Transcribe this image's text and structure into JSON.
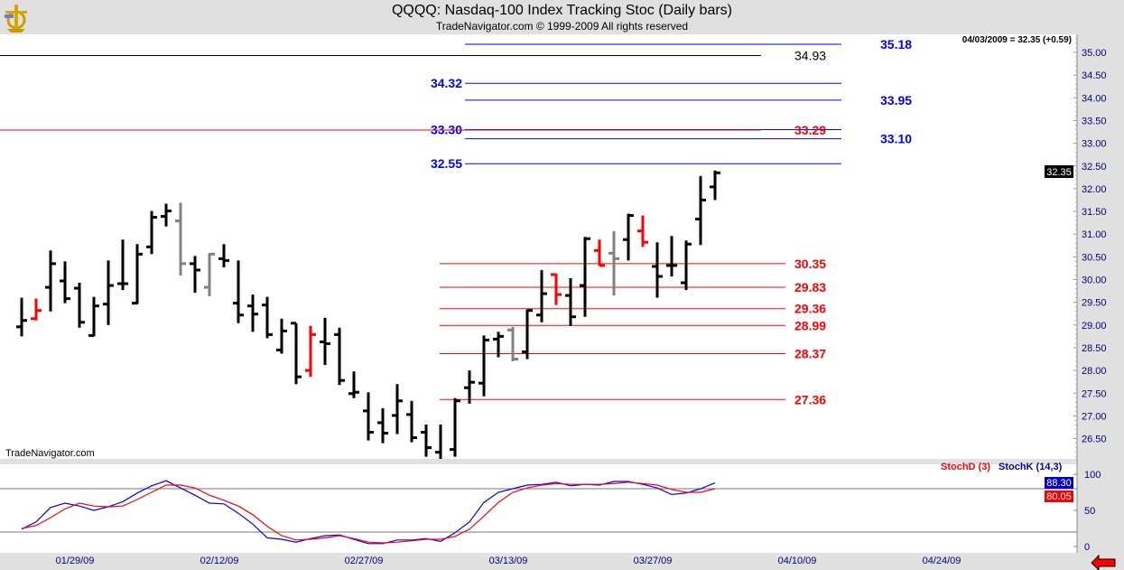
{
  "header": {
    "title": "QQQQ:  Nasdaq-100 Index Tracking Stoc  (Daily bars)",
    "subtitle": "TradeNavigator.com © 1999-2009 All rights reserved",
    "watermark": "TradeNavigator.com",
    "last_quote": "04/03/2009 = 32.35 (+0.59)"
  },
  "chart_data": [
    {
      "type": "ohlc",
      "title": "QQQQ:  Nasdaq-100 Index Tracking Stoc  (Daily bars)",
      "ylim": [
        26.1,
        35.4
      ],
      "y_ticks": [
        "35.00",
        "34.50",
        "34.00",
        "33.50",
        "33.00",
        "32.50",
        "32.00",
        "31.50",
        "31.00",
        "30.50",
        "30.00",
        "29.50",
        "29.00",
        "28.50",
        "28.00",
        "27.50",
        "27.00",
        "26.50"
      ],
      "x_ticks": [
        "01/29/09",
        "02/12/09",
        "02/27/09",
        "03/13/09",
        "03/27/09",
        "04/10/09",
        "04/24/09"
      ],
      "x_tick_dates_index": [
        3,
        13,
        23,
        33,
        43,
        53,
        63
      ],
      "last_price_label": "32.35",
      "bar_colors": {
        "normal": "#000000",
        "red": "#ff0000",
        "gray": "#808080"
      },
      "bars": [
        {
          "d": "01/26/09",
          "o": 28.96,
          "h": 29.6,
          "l": 28.75,
          "c": 29.1,
          "col": "normal"
        },
        {
          "d": "01/27/09",
          "o": 29.14,
          "h": 29.58,
          "l": 29.1,
          "c": 29.32,
          "col": "red"
        },
        {
          "d": "01/28/09",
          "o": 29.83,
          "h": 30.64,
          "l": 29.3,
          "c": 30.35,
          "col": "normal"
        },
        {
          "d": "01/29/09",
          "o": 29.97,
          "h": 30.4,
          "l": 29.48,
          "c": 29.58,
          "col": "normal"
        },
        {
          "d": "01/30/09",
          "o": 29.81,
          "h": 29.93,
          "l": 28.94,
          "c": 29.06,
          "col": "normal"
        },
        {
          "d": "02/02/09",
          "o": 28.77,
          "h": 29.62,
          "l": 28.75,
          "c": 29.42,
          "col": "normal"
        },
        {
          "d": "02/03/09",
          "o": 29.46,
          "h": 30.42,
          "l": 29.0,
          "c": 29.87,
          "col": "normal"
        },
        {
          "d": "02/04/09",
          "o": 29.91,
          "h": 30.88,
          "l": 29.77,
          "c": 29.91,
          "col": "normal"
        },
        {
          "d": "02/05/09",
          "o": 29.48,
          "h": 30.78,
          "l": 29.46,
          "c": 30.56,
          "col": "normal"
        },
        {
          "d": "02/06/09",
          "o": 30.72,
          "h": 31.51,
          "l": 30.56,
          "c": 31.37,
          "col": "normal"
        },
        {
          "d": "02/09/09",
          "o": 31.39,
          "h": 31.67,
          "l": 31.17,
          "c": 31.51,
          "col": "normal"
        },
        {
          "d": "02/10/09",
          "o": 31.29,
          "h": 31.69,
          "l": 30.09,
          "c": 30.35,
          "col": "gray"
        },
        {
          "d": "02/11/09",
          "o": 30.35,
          "h": 30.52,
          "l": 29.71,
          "c": 30.21,
          "col": "normal"
        },
        {
          "d": "02/12/09",
          "o": 29.83,
          "h": 30.58,
          "l": 29.63,
          "c": 30.56,
          "col": "gray"
        },
        {
          "d": "02/13/09",
          "o": 30.46,
          "h": 30.78,
          "l": 30.27,
          "c": 30.42,
          "col": "normal"
        },
        {
          "d": "02/17/09",
          "o": 29.48,
          "h": 30.42,
          "l": 29.04,
          "c": 29.22,
          "col": "normal"
        },
        {
          "d": "02/18/09",
          "o": 29.42,
          "h": 29.67,
          "l": 28.85,
          "c": 29.24,
          "col": "normal"
        },
        {
          "d": "02/19/09",
          "o": 29.44,
          "h": 29.62,
          "l": 28.71,
          "c": 28.79,
          "col": "normal"
        },
        {
          "d": "02/20/09",
          "o": 28.45,
          "h": 29.14,
          "l": 28.37,
          "c": 28.87,
          "col": "normal"
        },
        {
          "d": "02/23/09",
          "o": 29.04,
          "h": 29.04,
          "l": 27.7,
          "c": 27.86,
          "col": "normal"
        },
        {
          "d": "02/24/09",
          "o": 28.0,
          "h": 28.98,
          "l": 27.86,
          "c": 28.79,
          "col": "red"
        },
        {
          "d": "02/25/09",
          "o": 28.63,
          "h": 29.16,
          "l": 28.12,
          "c": 28.59,
          "col": "normal"
        },
        {
          "d": "02/26/09",
          "o": 28.79,
          "h": 28.94,
          "l": 27.68,
          "c": 27.78,
          "col": "normal"
        },
        {
          "d": "02/27/09",
          "o": 27.49,
          "h": 27.98,
          "l": 27.39,
          "c": 27.52,
          "col": "normal"
        },
        {
          "d": "03/02/09",
          "o": 27.11,
          "h": 27.52,
          "l": 26.46,
          "c": 26.64,
          "col": "normal"
        },
        {
          "d": "03/03/09",
          "o": 26.85,
          "h": 27.17,
          "l": 26.4,
          "c": 26.62,
          "col": "normal"
        },
        {
          "d": "03/04/09",
          "o": 27.01,
          "h": 27.7,
          "l": 26.6,
          "c": 27.33,
          "col": "normal"
        },
        {
          "d": "03/05/09",
          "o": 27.03,
          "h": 27.33,
          "l": 26.42,
          "c": 26.52,
          "col": "normal"
        },
        {
          "d": "03/06/09",
          "o": 26.64,
          "h": 26.81,
          "l": 26.1,
          "c": 26.3,
          "col": "normal"
        },
        {
          "d": "03/09/09",
          "o": 26.2,
          "h": 26.81,
          "l": 26.0,
          "c": 26.05,
          "col": "normal"
        },
        {
          "d": "03/10/09",
          "o": 26.26,
          "h": 27.39,
          "l": 26.1,
          "c": 27.33,
          "col": "normal"
        },
        {
          "d": "03/11/09",
          "o": 27.62,
          "h": 28.0,
          "l": 27.27,
          "c": 27.74,
          "col": "normal"
        },
        {
          "d": "03/12/09",
          "o": 27.72,
          "h": 28.77,
          "l": 27.43,
          "c": 28.67,
          "col": "normal"
        },
        {
          "d": "03/13/09",
          "o": 28.69,
          "h": 28.85,
          "l": 28.29,
          "c": 28.75,
          "col": "normal"
        },
        {
          "d": "03/16/09",
          "o": 28.89,
          "h": 28.96,
          "l": 28.2,
          "c": 28.25,
          "col": "gray"
        },
        {
          "d": "03/17/09",
          "o": 28.41,
          "h": 29.34,
          "l": 28.25,
          "c": 29.32,
          "col": "normal"
        },
        {
          "d": "03/18/09",
          "o": 29.22,
          "h": 30.21,
          "l": 29.06,
          "c": 29.69,
          "col": "normal"
        },
        {
          "d": "03/19/09",
          "o": 30.11,
          "h": 30.13,
          "l": 29.44,
          "c": 29.67,
          "col": "red"
        },
        {
          "d": "03/20/09",
          "o": 29.65,
          "h": 30.03,
          "l": 28.98,
          "c": 29.18,
          "col": "normal"
        },
        {
          "d": "03/23/09",
          "o": 29.87,
          "h": 30.94,
          "l": 29.18,
          "c": 30.9,
          "col": "normal"
        },
        {
          "d": "03/24/09",
          "o": 30.64,
          "h": 30.88,
          "l": 30.31,
          "c": 30.31,
          "col": "red"
        },
        {
          "d": "03/25/09",
          "o": 30.58,
          "h": 31.06,
          "l": 29.65,
          "c": 30.46,
          "col": "gray"
        },
        {
          "d": "03/26/09",
          "o": 30.88,
          "h": 31.45,
          "l": 30.42,
          "c": 31.41,
          "col": "normal"
        },
        {
          "d": "03/27/09",
          "o": 31.07,
          "h": 31.41,
          "l": 30.72,
          "c": 30.82,
          "col": "red"
        },
        {
          "d": "03/30/09",
          "o": 30.29,
          "h": 30.82,
          "l": 29.6,
          "c": 30.07,
          "col": "normal"
        },
        {
          "d": "03/31/09",
          "o": 30.31,
          "h": 30.96,
          "l": 30.07,
          "c": 30.31,
          "col": "normal"
        },
        {
          "d": "04/01/09",
          "o": 29.93,
          "h": 30.86,
          "l": 29.77,
          "c": 30.78,
          "col": "normal"
        },
        {
          "d": "04/02/09",
          "o": 31.33,
          "h": 32.28,
          "l": 30.76,
          "c": 31.75,
          "col": "normal"
        },
        {
          "d": "04/03/09",
          "o": 32.04,
          "h": 32.4,
          "l": 31.75,
          "c": 32.35,
          "col": "normal"
        }
      ],
      "levels": [
        {
          "price": 35.18,
          "label": "35.18",
          "color": "#0000ff",
          "group": "projection",
          "label_side": "right"
        },
        {
          "price": 34.93,
          "label": "34.93",
          "color": "#000000",
          "group": "long",
          "label_side": "end"
        },
        {
          "price": 34.32,
          "label": "34.32",
          "color": "#0000ff",
          "group": "projection",
          "label_side": "left"
        },
        {
          "price": 33.95,
          "label": "33.95",
          "color": "#0000ff",
          "group": "projection",
          "label_side": "right"
        },
        {
          "price": 33.3,
          "label": "33.30",
          "color": "#0000ff",
          "group": "projection",
          "label_side": "left"
        },
        {
          "price": 33.29,
          "label": "33.29",
          "color": "#ff0000",
          "group": "long",
          "label_side": "end"
        },
        {
          "price": 33.1,
          "label": "33.10",
          "color": "#0000ff",
          "group": "projection",
          "label_side": "right"
        },
        {
          "price": 32.55,
          "label": "32.55",
          "color": "#0000ff",
          "group": "projection",
          "label_side": "left"
        },
        {
          "price": 30.35,
          "label": "30.35",
          "color": "#ff0000",
          "group": "support",
          "label_side": "end"
        },
        {
          "price": 29.83,
          "label": "29.83",
          "color": "#ff0000",
          "group": "support",
          "label_side": "end"
        },
        {
          "price": 29.36,
          "label": "29.36",
          "color": "#ff0000",
          "group": "support",
          "label_side": "end"
        },
        {
          "price": 28.99,
          "label": "28.99",
          "color": "#ff0000",
          "group": "support",
          "label_side": "end"
        },
        {
          "price": 28.37,
          "label": "28.37",
          "color": "#ff0000",
          "group": "support",
          "label_side": "end"
        },
        {
          "price": 27.36,
          "label": "27.36",
          "color": "#ff0000",
          "group": "support",
          "label_side": "end"
        }
      ]
    },
    {
      "type": "line",
      "ylim": [
        0,
        100
      ],
      "y_ticks": [
        "100",
        "50",
        "0"
      ],
      "guide_levels": [
        80,
        20
      ],
      "series": [
        {
          "name": "StochK (14,3)",
          "color": "#0000ff",
          "last_label": "88.30",
          "values": [
            24,
            34,
            54,
            60,
            56,
            50,
            55,
            62,
            74,
            84,
            91,
            81,
            71,
            60,
            59,
            46,
            31,
            12,
            10,
            6,
            11,
            15,
            16,
            10,
            4,
            4,
            9,
            9,
            11,
            7,
            19,
            34,
            61,
            75,
            80,
            85,
            86,
            89,
            84,
            86,
            85,
            90,
            90,
            86,
            81,
            72,
            74,
            80,
            88
          ]
        },
        {
          "name": "StochD (3)",
          "color": "#ff0000",
          "last_label": "80.05",
          "values": [
            25,
            29,
            40,
            52,
            60,
            56,
            55,
            56,
            65,
            75,
            85,
            85,
            81,
            71,
            64,
            56,
            44,
            28,
            15,
            9,
            10,
            12,
            15,
            11,
            6,
            5,
            6,
            8,
            10,
            10,
            14,
            24,
            42,
            61,
            75,
            81,
            85,
            87,
            86,
            86,
            86,
            87,
            89,
            87,
            85,
            79,
            75,
            75,
            80
          ]
        }
      ]
    }
  ]
}
